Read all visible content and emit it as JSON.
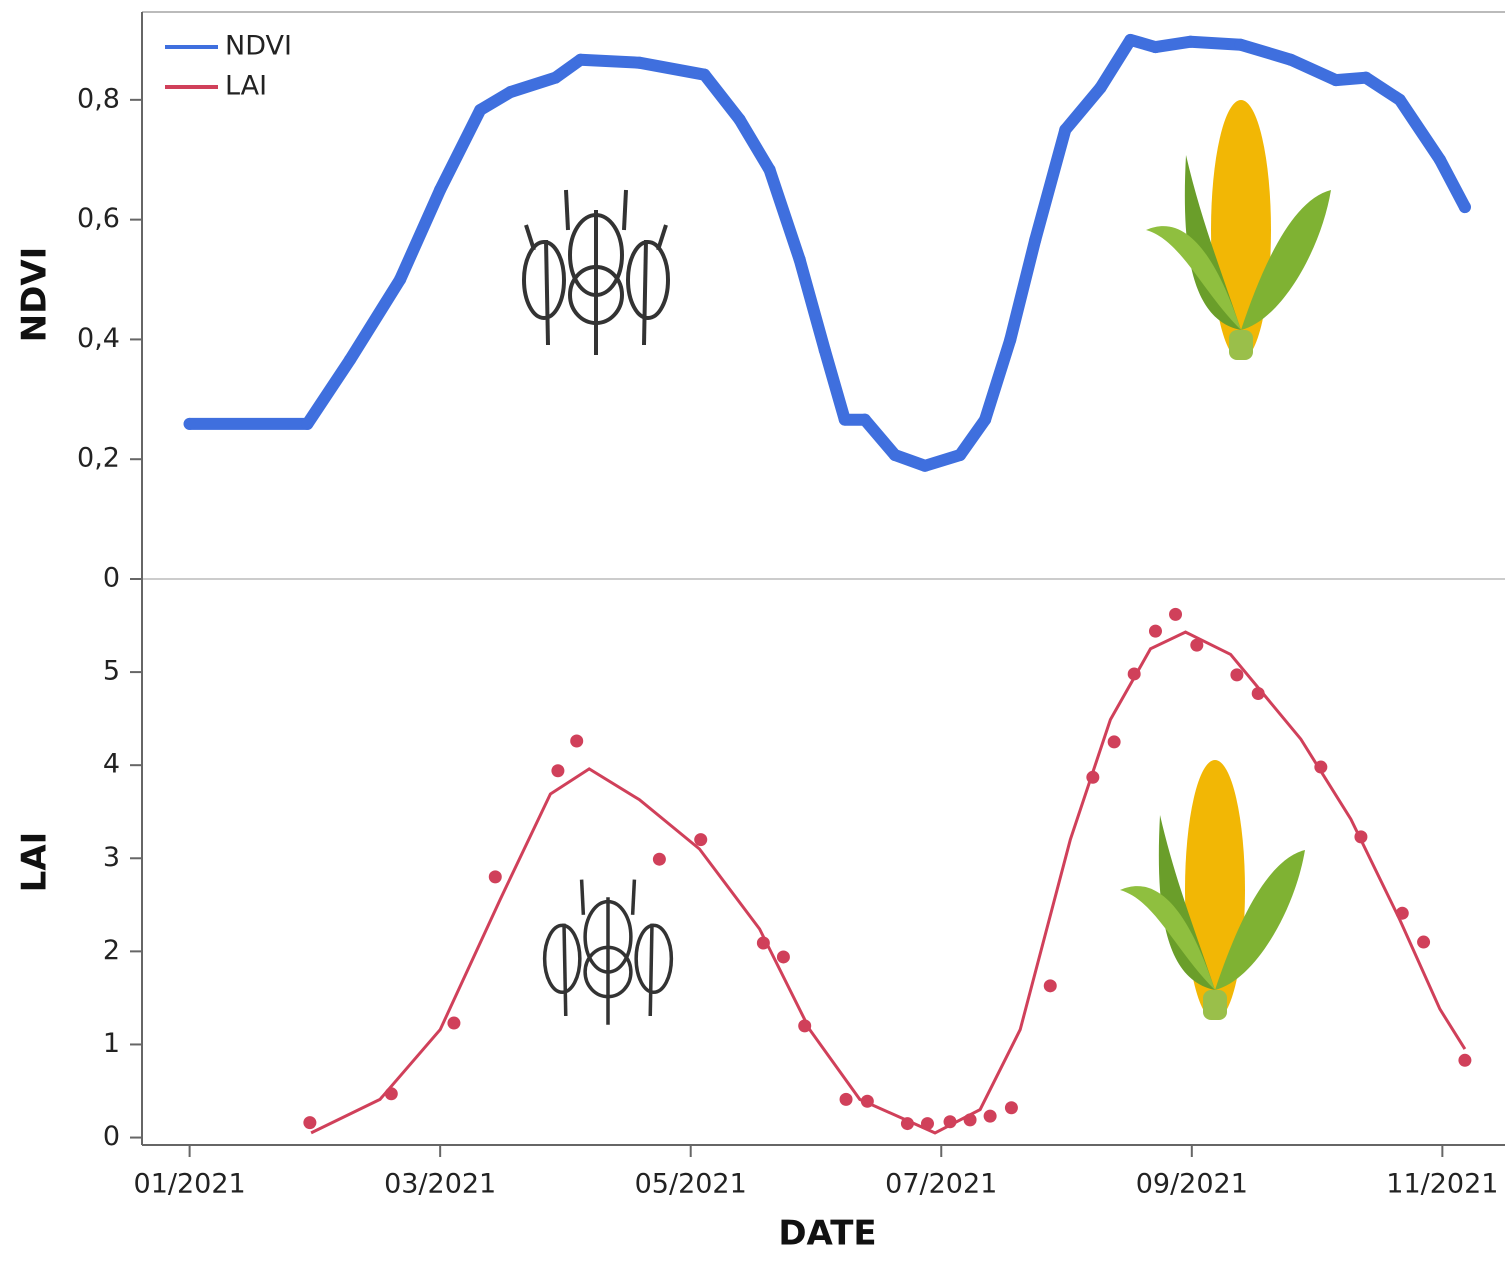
{
  "chart_data": [
    {
      "type": "line",
      "y_label": "NDVI",
      "xlim": [
        0.62,
        11.5
      ],
      "ylim": [
        0,
        0.95
      ],
      "yticks": [
        0,
        {
          "value": 0.2,
          "label": "0,2"
        },
        {
          "value": 0.4,
          "label": "0,4"
        },
        {
          "value": 0.6,
          "label": "0,6"
        },
        {
          "value": 0.8,
          "label": "0,8"
        }
      ],
      "legend": "upper left",
      "series": [
        {
          "name": "NDVI",
          "color": "#3f6fde",
          "x": [
            1.0,
            1.94,
            2.28,
            2.68,
            3.0,
            3.32,
            3.56,
            3.92,
            4.12,
            4.59,
            5.11,
            5.39,
            5.63,
            5.87,
            6.07,
            6.23,
            6.39,
            6.63,
            6.87,
            7.15,
            7.35,
            7.55,
            7.75,
            7.99,
            8.27,
            8.51,
            8.71,
            8.99,
            9.39,
            9.79,
            10.15,
            10.39,
            10.66,
            10.98,
            11.18
          ],
          "values": [
            0.259,
            0.259,
            0.366,
            0.5,
            0.65,
            0.783,
            0.813,
            0.837,
            0.867,
            0.862,
            0.842,
            0.767,
            0.683,
            0.533,
            0.382,
            0.266,
            0.266,
            0.207,
            0.189,
            0.207,
            0.266,
            0.399,
            0.566,
            0.75,
            0.82,
            0.9,
            0.888,
            0.897,
            0.892,
            0.867,
            0.833,
            0.837,
            0.8,
            0.7,
            0.621
          ]
        }
      ]
    },
    {
      "type": "scatter",
      "y_label": "LAI",
      "x_label": "DATE",
      "xlim": [
        0.62,
        11.5
      ],
      "xticks": [
        {
          "value": 1,
          "label": "01/2021"
        },
        {
          "value": 3,
          "label": "03/2021"
        },
        {
          "value": 5,
          "label": "05/2021"
        },
        {
          "value": 7,
          "label": "07/2021"
        },
        {
          "value": 9,
          "label": "09/2021"
        },
        {
          "value": 11,
          "label": "11/2021"
        }
      ],
      "ylim": [
        -0.08,
        6
      ],
      "yticks": [
        0,
        1,
        2,
        3,
        4,
        5
      ],
      "series": [
        {
          "name": "LAI",
          "color": "#d0405a",
          "x": [
            1.96,
            2.61,
            3.11,
            3.44,
            3.94,
            4.09,
            4.75,
            5.08,
            5.58,
            5.74,
            5.91,
            6.24,
            6.41,
            6.73,
            6.89,
            7.07,
            7.23,
            7.39,
            7.56,
            7.87,
            8.21,
            8.38,
            8.54,
            8.71,
            8.87,
            9.04,
            9.36,
            9.53,
            10.03,
            10.35,
            10.68,
            10.85,
            11.18
          ],
          "values": [
            0.16,
            0.47,
            1.23,
            2.8,
            3.94,
            4.26,
            2.99,
            3.2,
            2.09,
            1.94,
            1.2,
            0.41,
            0.39,
            0.15,
            0.15,
            0.17,
            0.19,
            0.23,
            0.32,
            1.63,
            3.87,
            4.25,
            4.98,
            5.44,
            5.62,
            5.29,
            4.97,
            4.77,
            3.98,
            3.23,
            2.41,
            2.1,
            0.83
          ],
          "fit": {
            "x": [
              1.97,
              2.52,
              3.0,
              3.48,
              3.88,
              4.19,
              4.59,
              5.07,
              5.55,
              5.95,
              6.35,
              6.95,
              7.31,
              7.63,
              8.03,
              8.35,
              8.67,
              8.95,
              9.31,
              9.87,
              10.27,
              10.66,
              10.98,
              11.18
            ],
            "values": [
              0.05,
              0.41,
              1.16,
              2.56,
              3.69,
              3.96,
              3.63,
              3.1,
              2.24,
              1.16,
              0.41,
              0.05,
              0.3,
              1.16,
              3.2,
              4.49,
              5.25,
              5.43,
              5.19,
              4.28,
              3.42,
              2.34,
              1.38,
              0.95
            ]
          }
        }
      ]
    }
  ]
}
